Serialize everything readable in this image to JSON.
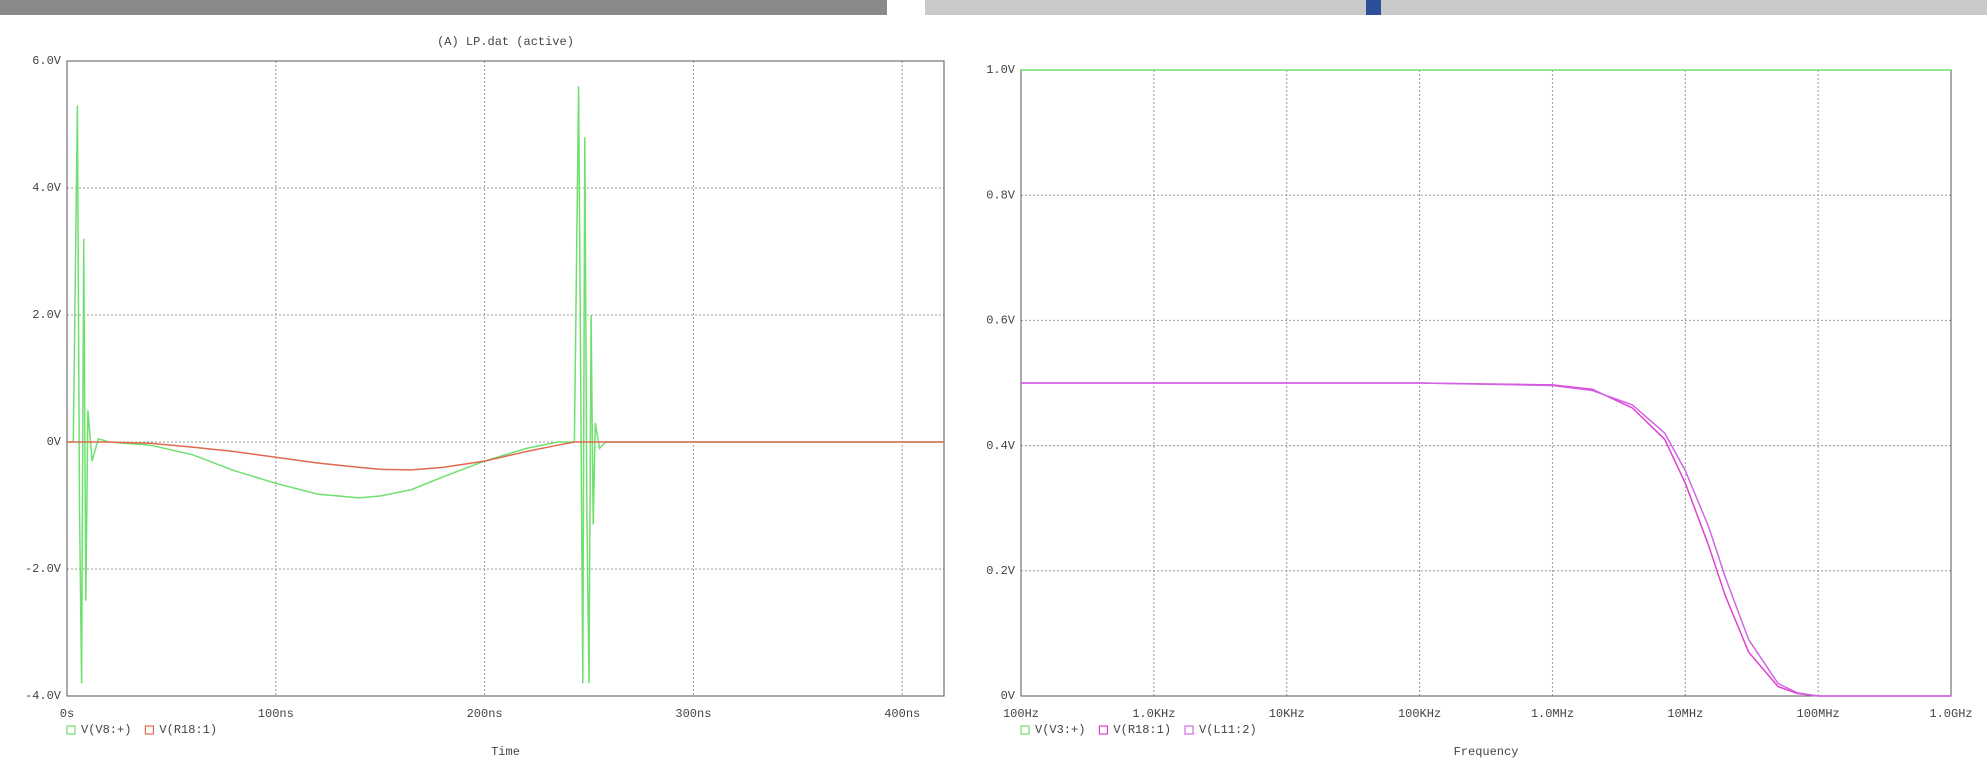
{
  "chart_data": [
    {
      "type": "line",
      "title": "(A) LP.dat (active)",
      "x_label": "Time",
      "grid": true,
      "xlim": [
        0,
        420
      ],
      "xticks": [
        {
          "value": 0,
          "label": "0s"
        },
        {
          "value": 100,
          "label": "100ns"
        },
        {
          "value": 200,
          "label": "200ns"
        },
        {
          "value": 300,
          "label": "300ns"
        },
        {
          "value": 400,
          "label": "400ns"
        }
      ],
      "ylim": [
        -4,
        6
      ],
      "yticks": [
        {
          "value": -4,
          "label": "-4.0V"
        },
        {
          "value": -2,
          "label": "-2.0V"
        },
        {
          "value": 0,
          "label": "0V"
        },
        {
          "value": 2,
          "label": "2.0V"
        },
        {
          "value": 4,
          "label": "4.0V"
        },
        {
          "value": 6,
          "label": "6.0V"
        }
      ],
      "x": [
        0,
        3,
        5,
        6,
        7,
        8,
        9,
        10,
        12,
        15,
        20,
        40,
        60,
        80,
        100,
        120,
        140,
        150,
        165,
        180,
        200,
        220,
        235,
        240,
        243,
        245,
        246,
        247,
        248,
        249,
        250,
        251,
        252,
        253,
        255,
        258,
        262,
        280,
        300,
        340,
        380,
        420
      ],
      "series": [
        {
          "name": "V(V8:+)",
          "color": "#6ee06e",
          "values": [
            0,
            0,
            5.3,
            -1,
            -3.8,
            3.2,
            -2.5,
            0.5,
            -0.3,
            0.05,
            0,
            -0.05,
            -0.2,
            -0.45,
            -0.65,
            -0.82,
            -0.88,
            -0.85,
            -0.75,
            -0.55,
            -0.3,
            -0.1,
            0,
            0,
            0,
            5.6,
            1,
            -3.8,
            4.8,
            -1.2,
            -3.8,
            2,
            -1.3,
            0.3,
            -0.1,
            0,
            0,
            0,
            0,
            0,
            0,
            0
          ]
        },
        {
          "name": "V(R18:1)",
          "color": "#e06a50",
          "values": [
            0,
            0,
            0,
            0,
            0,
            0,
            0,
            0,
            0,
            0,
            0,
            -0.02,
            -0.08,
            -0.15,
            -0.24,
            -0.33,
            -0.4,
            -0.43,
            -0.44,
            -0.4,
            -0.3,
            -0.15,
            -0.05,
            -0.02,
            0,
            0,
            0,
            0,
            0,
            0,
            0,
            0,
            0,
            0,
            0,
            0,
            0,
            0,
            0,
            0,
            0,
            0
          ]
        }
      ]
    },
    {
      "type": "line",
      "x_label": "Frequency",
      "grid": true,
      "xscale": "log",
      "xlim": [
        100,
        1000000000
      ],
      "xticks": [
        {
          "value": 100,
          "label": "100Hz"
        },
        {
          "value": 1000,
          "label": "1.0KHz"
        },
        {
          "value": 10000,
          "label": "10KHz"
        },
        {
          "value": 100000,
          "label": "100KHz"
        },
        {
          "value": 1000000,
          "label": "1.0MHz"
        },
        {
          "value": 10000000,
          "label": "10MHz"
        },
        {
          "value": 100000000,
          "label": "100MHz"
        },
        {
          "value": 1000000000,
          "label": "1.0GHz"
        }
      ],
      "ylim": [
        0,
        1
      ],
      "yticks": [
        {
          "value": 0,
          "label": "0V"
        },
        {
          "value": 0.2,
          "label": "0.2V"
        },
        {
          "value": 0.4,
          "label": "0.4V"
        },
        {
          "value": 0.6,
          "label": "0.6V"
        },
        {
          "value": 0.8,
          "label": "0.8V"
        },
        {
          "value": 1,
          "label": "1.0V"
        }
      ],
      "x": [
        100,
        300,
        1000,
        10000,
        100000,
        1000000,
        2000000,
        4000000,
        7000000,
        10000000,
        15000000,
        20000000,
        30000000,
        50000000,
        70000000,
        100000000,
        1000000000
      ],
      "series": [
        {
          "name": "V(V3:+)",
          "color": "#6ee06e",
          "values": [
            1,
            1,
            1,
            1,
            1,
            1,
            1,
            1,
            1,
            1,
            1,
            1,
            1,
            1,
            1,
            1,
            1
          ]
        },
        {
          "name": "V(R18:1)",
          "color": "#e040d0",
          "values": [
            0.5,
            0.5,
            0.5,
            0.5,
            0.5,
            0.497,
            0.49,
            0.46,
            0.41,
            0.34,
            0.24,
            0.16,
            0.07,
            0.015,
            0.004,
            0,
            0
          ]
        },
        {
          "name": "V(L11:2)",
          "color": "#d066e6",
          "values": [
            0.5,
            0.5,
            0.5,
            0.5,
            0.5,
            0.496,
            0.488,
            0.465,
            0.42,
            0.36,
            0.27,
            0.19,
            0.09,
            0.02,
            0.005,
            0,
            0
          ]
        }
      ]
    }
  ]
}
